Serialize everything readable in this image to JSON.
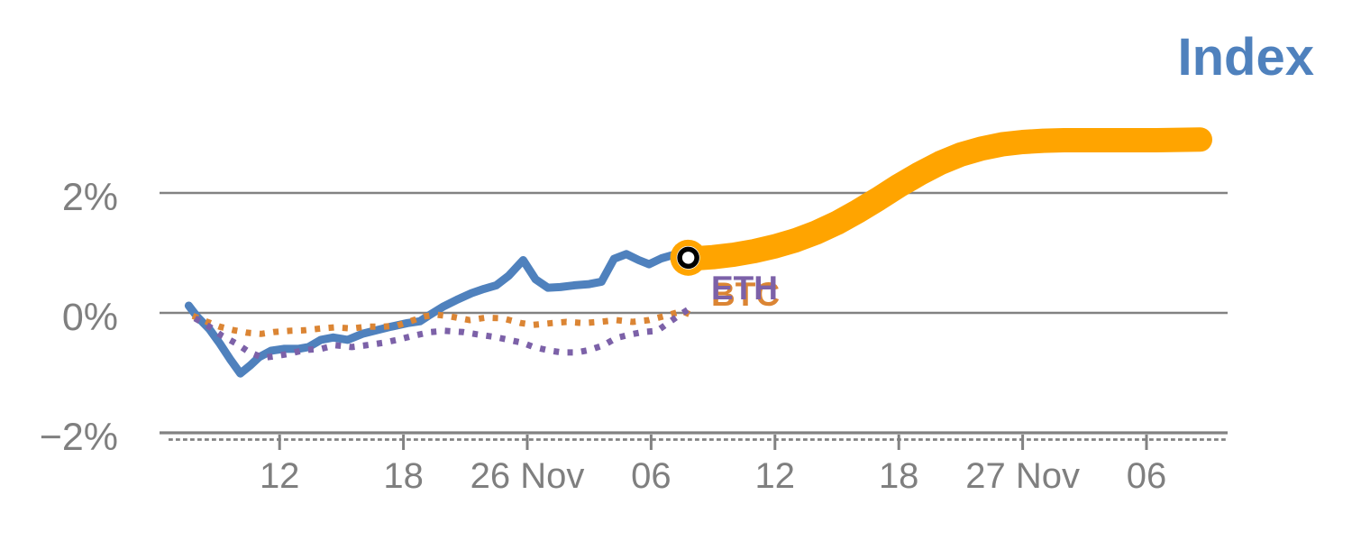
{
  "title": {
    "text": "Index"
  },
  "legend": {
    "eth": {
      "label": "ETH",
      "color": "#7C61A8"
    },
    "btc": {
      "label": "BTC",
      "color": "#DB8534"
    }
  },
  "colors": {
    "index_line": "#4F81BD",
    "forecast_band": "#FFA400",
    "btc_dotted": "#DB8534",
    "eth_dotted": "#7C61A8",
    "grid": "#828282",
    "axis_text": "#7F7F7F",
    "title_text": "#4F81BD",
    "marker_ring": "#000000",
    "background": "#FFFFFF"
  },
  "chart_data": {
    "type": "line",
    "title": "Index",
    "x_axis": {
      "unit": "time, hours relative to 26 Nov 00:00",
      "tick_hours": [
        -12,
        -6,
        0,
        6,
        12,
        18,
        24,
        30
      ],
      "tick_labels": [
        "12",
        "18",
        "26 Nov",
        "06",
        "12",
        "18",
        "27 Nov",
        "06"
      ],
      "range_hours": [
        -17.8,
        33.9
      ],
      "grid": false
    },
    "y_axis": {
      "unit": "percent change",
      "tick_values": [
        2,
        0,
        -2
      ],
      "tick_labels": [
        "2%",
        "0%",
        "−2%"
      ],
      "range": [
        -2.75,
        3.35
      ],
      "gridlines_at": [
        2,
        0
      ],
      "baseline_at": -2
    },
    "series": [
      {
        "name": "Index history",
        "color": "#4F81BD",
        "style": "solid",
        "stroke_width": 9,
        "points": [
          [
            -16.4,
            0.12
          ],
          [
            -16.0,
            -0.06
          ],
          [
            -15.4,
            -0.27
          ],
          [
            -14.9,
            -0.51
          ],
          [
            -14.4,
            -0.77
          ],
          [
            -13.9,
            -1.01
          ],
          [
            -13.4,
            -0.87
          ],
          [
            -13.0,
            -0.74
          ],
          [
            -12.4,
            -0.63
          ],
          [
            -11.8,
            -0.6
          ],
          [
            -11.1,
            -0.6
          ],
          [
            -10.6,
            -0.57
          ],
          [
            -10.0,
            -0.45
          ],
          [
            -9.4,
            -0.41
          ],
          [
            -8.7,
            -0.45
          ],
          [
            -8.0,
            -0.35
          ],
          [
            -7.3,
            -0.29
          ],
          [
            -6.6,
            -0.23
          ],
          [
            -5.8,
            -0.17
          ],
          [
            -5.2,
            -0.14
          ],
          [
            -4.8,
            -0.05
          ],
          [
            -4.1,
            0.1
          ],
          [
            -3.4,
            0.22
          ],
          [
            -2.7,
            0.33
          ],
          [
            -2.1,
            0.4
          ],
          [
            -1.5,
            0.46
          ],
          [
            -0.9,
            0.62
          ],
          [
            -0.2,
            0.88
          ],
          [
            0.4,
            0.56
          ],
          [
            1.0,
            0.42
          ],
          [
            1.6,
            0.43
          ],
          [
            2.3,
            0.46
          ],
          [
            3.0,
            0.48
          ],
          [
            3.6,
            0.52
          ],
          [
            4.2,
            0.9
          ],
          [
            4.8,
            0.98
          ],
          [
            5.4,
            0.88
          ],
          [
            5.9,
            0.81
          ],
          [
            6.5,
            0.91
          ],
          [
            7.0,
            0.96
          ],
          [
            7.8,
            0.92
          ]
        ]
      },
      {
        "name": "BTC",
        "color": "#DB8534",
        "style": "dotted",
        "stroke_width": 7,
        "points": [
          [
            -16.2,
            -0.05
          ],
          [
            -15.5,
            -0.15
          ],
          [
            -14.9,
            -0.23
          ],
          [
            -14.2,
            -0.29
          ],
          [
            -13.6,
            -0.33
          ],
          [
            -12.9,
            -0.35
          ],
          [
            -12.3,
            -0.32
          ],
          [
            -11.5,
            -0.3
          ],
          [
            -10.8,
            -0.29
          ],
          [
            -10.0,
            -0.26
          ],
          [
            -9.3,
            -0.24
          ],
          [
            -8.5,
            -0.26
          ],
          [
            -7.8,
            -0.23
          ],
          [
            -7.0,
            -0.23
          ],
          [
            -6.3,
            -0.21
          ],
          [
            -5.5,
            -0.12
          ],
          [
            -5.0,
            -0.06
          ],
          [
            -4.4,
            -0.03
          ],
          [
            -3.7,
            -0.06
          ],
          [
            -2.8,
            -0.12
          ],
          [
            -2.0,
            -0.08
          ],
          [
            -1.2,
            -0.09
          ],
          [
            -0.3,
            -0.17
          ],
          [
            0.3,
            -0.2
          ],
          [
            1.2,
            -0.17
          ],
          [
            1.9,
            -0.15
          ],
          [
            2.7,
            -0.17
          ],
          [
            3.5,
            -0.15
          ],
          [
            4.3,
            -0.12
          ],
          [
            5.1,
            -0.15
          ],
          [
            5.9,
            -0.12
          ],
          [
            6.7,
            -0.05
          ],
          [
            7.5,
            0.03
          ],
          [
            8.1,
            -0.06
          ]
        ]
      },
      {
        "name": "ETH",
        "color": "#7C61A8",
        "style": "dotted",
        "stroke_width": 7,
        "points": [
          [
            -16.1,
            -0.09
          ],
          [
            -15.4,
            -0.23
          ],
          [
            -14.8,
            -0.38
          ],
          [
            -14.1,
            -0.51
          ],
          [
            -13.5,
            -0.65
          ],
          [
            -12.8,
            -0.75
          ],
          [
            -12.2,
            -0.72
          ],
          [
            -11.5,
            -0.68
          ],
          [
            -10.8,
            -0.62
          ],
          [
            -10.0,
            -0.6
          ],
          [
            -9.3,
            -0.54
          ],
          [
            -8.5,
            -0.57
          ],
          [
            -7.8,
            -0.54
          ],
          [
            -7.0,
            -0.5
          ],
          [
            -6.3,
            -0.45
          ],
          [
            -5.5,
            -0.38
          ],
          [
            -4.7,
            -0.32
          ],
          [
            -4.0,
            -0.3
          ],
          [
            -3.1,
            -0.32
          ],
          [
            -2.4,
            -0.36
          ],
          [
            -1.6,
            -0.4
          ],
          [
            -0.9,
            -0.45
          ],
          [
            -0.2,
            -0.5
          ],
          [
            0.3,
            -0.57
          ],
          [
            1.1,
            -0.63
          ],
          [
            1.7,
            -0.66
          ],
          [
            2.4,
            -0.66
          ],
          [
            3.0,
            -0.62
          ],
          [
            3.7,
            -0.54
          ],
          [
            4.3,
            -0.42
          ],
          [
            5.0,
            -0.36
          ],
          [
            5.6,
            -0.32
          ],
          [
            6.3,
            -0.3
          ],
          [
            6.9,
            -0.15
          ],
          [
            7.4,
            -0.03
          ],
          [
            7.9,
            0.08
          ]
        ]
      },
      {
        "name": "Index forecast",
        "color": "#FFA400",
        "style": "solid",
        "stroke_width": 27,
        "points": [
          [
            7.8,
            0.9
          ],
          [
            9.0,
            0.93
          ],
          [
            10.0,
            0.97
          ],
          [
            11.0,
            1.03
          ],
          [
            12.0,
            1.11
          ],
          [
            13.0,
            1.21
          ],
          [
            14.0,
            1.34
          ],
          [
            15.0,
            1.5
          ],
          [
            16.0,
            1.69
          ],
          [
            17.0,
            1.9
          ],
          [
            18.0,
            2.12
          ],
          [
            19.0,
            2.32
          ],
          [
            20.0,
            2.5
          ],
          [
            21.0,
            2.64
          ],
          [
            22.0,
            2.74
          ],
          [
            23.0,
            2.81
          ],
          [
            24.0,
            2.85
          ],
          [
            25.0,
            2.87
          ],
          [
            26.0,
            2.88
          ],
          [
            27.5,
            2.88
          ],
          [
            29.0,
            2.88
          ],
          [
            30.5,
            2.88
          ],
          [
            32.6,
            2.89
          ]
        ]
      }
    ],
    "forecast_start_marker": {
      "hour": 7.8,
      "value_pct": 0.92,
      "description": "black open circle on orange pad at junction of history and forecast"
    },
    "legend_position": "inline: ETH/BTC labels at right end of dotted series, Index title at top right"
  }
}
